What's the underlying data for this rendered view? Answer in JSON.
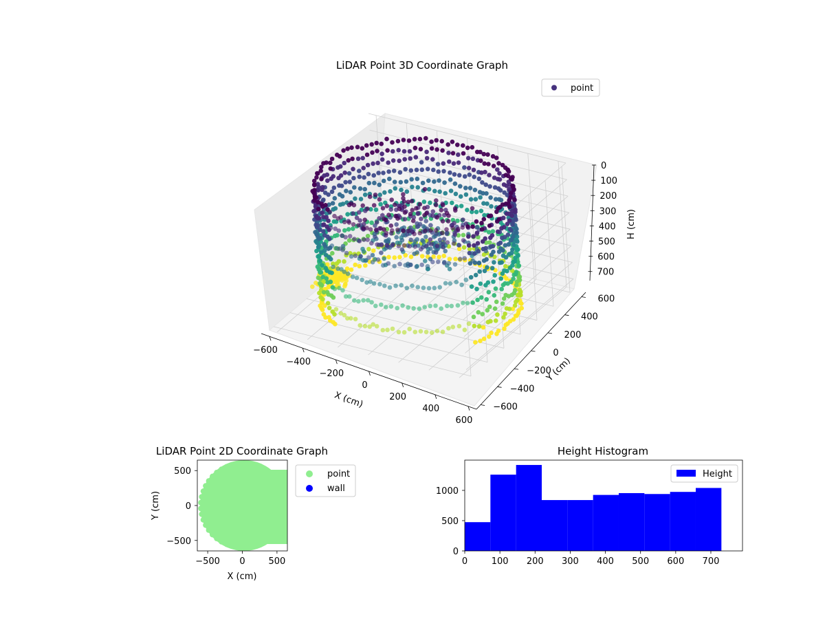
{
  "chart_data": [
    {
      "type": "scatter",
      "title": "LiDAR Point 3D Coordinate Graph",
      "xlabel": "X (cm)",
      "ylabel": "Y (cm)",
      "zlabel": "H (cm)",
      "xlim": [
        -650,
        650
      ],
      "ylim": [
        -650,
        650
      ],
      "zlim": [
        0,
        760
      ],
      "z_inverted": true,
      "x_ticks": [
        "−600",
        "−400",
        "−200",
        "0",
        "200",
        "400",
        "600"
      ],
      "y_ticks": [
        "−600",
        "−400",
        "−200",
        "0",
        "200",
        "400",
        "600"
      ],
      "z_ticks": [
        "0",
        "100",
        "200",
        "300",
        "400",
        "500",
        "600",
        "700"
      ],
      "grid": true,
      "legend": {
        "position": "top-right",
        "entries": [
          "point"
        ]
      },
      "colormap": "viridis",
      "legend_color": "#46327e",
      "series": [
        {
          "name": "point",
          "shape": "cylindrical wall of ~600 cm radius, height 0–720 cm, open sector on +X/+Y side with inner structure"
        }
      ]
    },
    {
      "type": "scatter",
      "title": "LiDAR Point 2D Coordinate Graph",
      "xlabel": "X (cm)",
      "ylabel": "Y (cm)",
      "xlim": [
        -650,
        650
      ],
      "ylim": [
        -650,
        650
      ],
      "x_ticks": [
        "−500",
        "0",
        "500"
      ],
      "y_ticks": [
        "−500",
        "0",
        "500"
      ],
      "legend": {
        "position": "outside-right",
        "entries": [
          "point",
          "wall"
        ]
      },
      "series": [
        {
          "name": "point",
          "color": "#90ee90"
        },
        {
          "name": "wall",
          "color": "#0000ff"
        }
      ]
    },
    {
      "type": "bar",
      "title": "Height Histogram",
      "bin_edges": [
        0,
        73,
        146,
        219,
        292,
        365,
        438,
        511,
        584,
        657,
        730
      ],
      "values": [
        475,
        1260,
        1420,
        840,
        840,
        925,
        955,
        940,
        975,
        1040
      ],
      "xlim": [
        0,
        790
      ],
      "ylim": [
        0,
        1500
      ],
      "x_ticks": [
        "0",
        "100",
        "200",
        "300",
        "400",
        "500",
        "600",
        "700"
      ],
      "y_ticks": [
        "0",
        "500",
        "1000"
      ],
      "legend": {
        "position": "top-right",
        "entries": [
          "Height"
        ]
      },
      "series": [
        {
          "name": "Height",
          "color": "#0000ff"
        }
      ]
    }
  ]
}
